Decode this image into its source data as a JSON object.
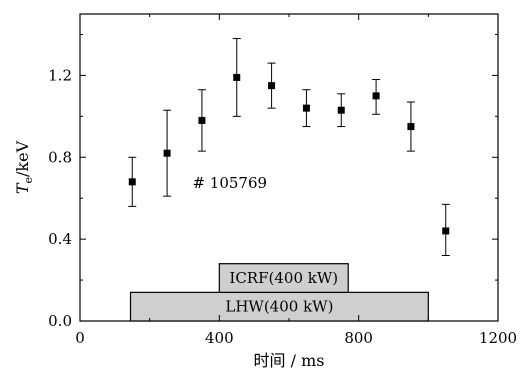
{
  "chart_data": {
    "type": "scatter",
    "title": "",
    "xlabel": "时间 / ms",
    "ylabel_main": "T",
    "ylabel_sub": "e",
    "ylabel_rest": "/keV",
    "xlim": [
      0,
      1200
    ],
    "ylim": [
      0,
      1.5
    ],
    "xticks": [
      0,
      400,
      800,
      1200
    ],
    "xtick_labels": [
      "0",
      "400",
      "800",
      "1200"
    ],
    "yticks": [
      0.0,
      0.4,
      0.8,
      1.2
    ],
    "ytick_labels": [
      "0.0",
      "0.4",
      "0.8",
      "1.2"
    ],
    "grid": false,
    "series": [
      {
        "marker": "square",
        "x": [
          150,
          250,
          350,
          450,
          550,
          650,
          750,
          850,
          950,
          1050
        ],
        "y": [
          0.68,
          0.82,
          0.98,
          1.19,
          1.15,
          1.04,
          1.03,
          1.1,
          0.95,
          0.44
        ],
        "err_low": [
          0.12,
          0.21,
          0.15,
          0.19,
          0.11,
          0.09,
          0.08,
          0.09,
          0.12,
          0.12
        ],
        "err_high": [
          0.12,
          0.21,
          0.15,
          0.19,
          0.11,
          0.09,
          0.08,
          0.08,
          0.12,
          0.13
        ]
      }
    ],
    "annotation": "# 105769",
    "heating_bars": [
      {
        "label": "ICRF(400 kW)",
        "x_start": 400,
        "x_end": 770,
        "y_bottom": 0.14,
        "y_top": 0.28
      },
      {
        "label": "LHW(400 kW)",
        "x_start": 145,
        "x_end": 1000,
        "y_bottom": 0.0,
        "y_top": 0.14
      }
    ]
  }
}
